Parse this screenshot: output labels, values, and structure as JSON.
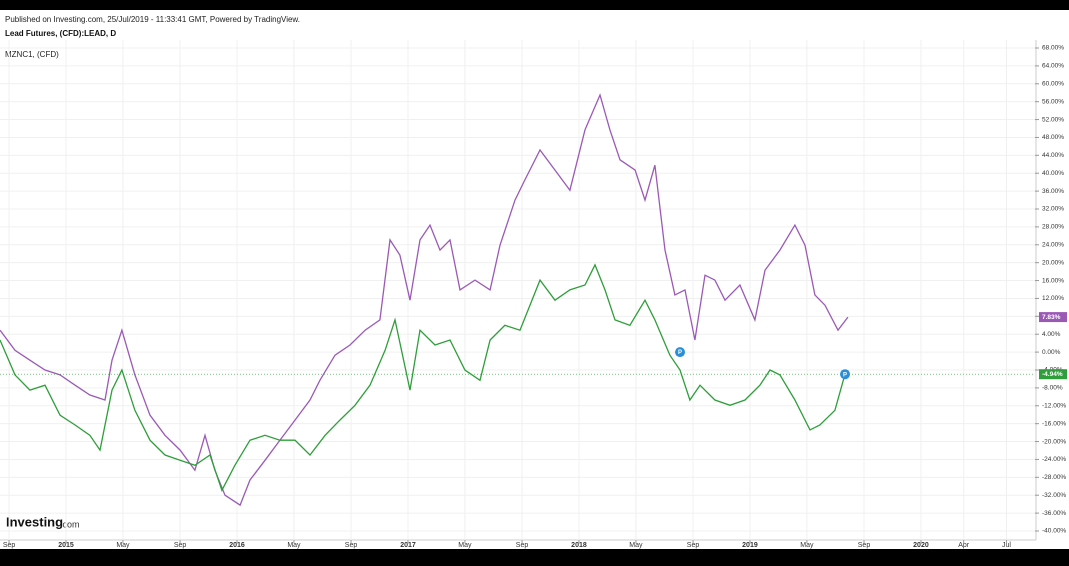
{
  "header": {
    "published": "Published on Investing.com, 25/Jul/2019 - 11:33:41 GMT, Powered by TradingView.",
    "instrument": "Lead Futures, (CFD):LEAD, D",
    "compare": "MZNC1,  (CFD)",
    "logo": "Investing",
    "logo_suffix": ".com"
  },
  "chart_data": {
    "type": "line",
    "xlim": [
      2014.614,
      2020.667
    ],
    "ylim": [
      -40,
      68
    ],
    "xticks": [
      {
        "value": 2014.667,
        "label": "Sep"
      },
      2015,
      {
        "value": 2015.333,
        "label": "May"
      },
      {
        "value": 2015.667,
        "label": "Sep"
      },
      2016,
      {
        "value": 2016.333,
        "label": "May"
      },
      {
        "value": 2016.667,
        "label": "Sep"
      },
      2017,
      {
        "value": 2017.333,
        "label": "May"
      },
      {
        "value": 2017.667,
        "label": "Sep"
      },
      2018,
      {
        "value": 2018.333,
        "label": "May"
      },
      {
        "value": 2018.667,
        "label": "Sep"
      },
      2019,
      {
        "value": 2019.333,
        "label": "May"
      },
      {
        "value": 2019.667,
        "label": "Sep"
      },
      2020,
      {
        "value": 2020.25,
        "label": "Apr"
      },
      {
        "value": 2020.5,
        "label": "Jul"
      }
    ],
    "yticks": [
      {
        "value": 68,
        "label": "68.00%"
      },
      {
        "value": 64,
        "label": "64.00%"
      },
      {
        "value": 60,
        "label": "60.00%"
      },
      {
        "value": 56,
        "label": "56.00%"
      },
      {
        "value": 52,
        "label": "52.00%"
      },
      {
        "value": 48,
        "label": "48.00%"
      },
      {
        "value": 44,
        "label": "44.00%"
      },
      {
        "value": 40,
        "label": "40.00%"
      },
      {
        "value": 36,
        "label": "36.00%"
      },
      {
        "value": 32,
        "label": "32.00%"
      },
      {
        "value": 28,
        "label": "28.00%"
      },
      {
        "value": 24,
        "label": "24.00%"
      },
      {
        "value": 20,
        "label": "20.00%"
      },
      {
        "value": 16,
        "label": "16.00%"
      },
      {
        "value": 12,
        "label": "12.00%"
      },
      {
        "value": 8,
        "label": "8.00%"
      },
      {
        "value": 4,
        "label": "4.00%"
      },
      {
        "value": 0,
        "label": "0.00%"
      },
      {
        "value": -4,
        "label": "-4.00%"
      },
      {
        "value": -8,
        "label": "-8.00%"
      },
      {
        "value": -12,
        "label": "-12.00%"
      },
      {
        "value": -16,
        "label": "-16.00%"
      },
      {
        "value": -20,
        "label": "-20.00%"
      },
      {
        "value": -24,
        "label": "-24.00%"
      },
      {
        "value": -28,
        "label": "-28.00%"
      },
      {
        "value": -32,
        "label": "-32.00%"
      },
      {
        "value": -36,
        "label": "-36.00%"
      },
      {
        "value": -40,
        "label": "-40.00%"
      }
    ],
    "grid": true,
    "series": [
      {
        "name": "MZNC1",
        "color": "#9b59b6",
        "last_value_label": "7.83%",
        "x": [
          2014.614,
          2014.702,
          2014.789,
          2014.877,
          2014.965,
          2015.053,
          2015.14,
          2015.228,
          2015.269,
          2015.327,
          2015.403,
          2015.491,
          2015.579,
          2015.667,
          2015.754,
          2015.813,
          2015.871,
          2015.93,
          2016.018,
          2016.076,
          2016.164,
          2016.251,
          2016.339,
          2016.427,
          2016.485,
          2016.573,
          2016.661,
          2016.749,
          2016.836,
          2016.895,
          2016.953,
          2017.012,
          2017.07,
          2017.129,
          2017.187,
          2017.246,
          2017.304,
          2017.392,
          2017.48,
          2017.538,
          2017.626,
          2017.684,
          2017.772,
          2017.86,
          2017.947,
          2018.035,
          2018.123,
          2018.181,
          2018.24,
          2018.328,
          2018.386,
          2018.444,
          2018.503,
          2018.561,
          2018.62,
          2018.678,
          2018.737,
          2018.795,
          2018.854,
          2018.941,
          2019.029,
          2019.088,
          2019.175,
          2019.263,
          2019.322,
          2019.38,
          2019.439,
          2019.515,
          2019.573
        ],
        "values": [
          4.9,
          0.4,
          -1.8,
          -4,
          -5.1,
          -7.4,
          -9.6,
          -10.7,
          -1.8,
          4.9,
          -5.1,
          -14.1,
          -18.6,
          -21.9,
          -26.4,
          -18.6,
          -26.4,
          -32,
          -34.2,
          -28.6,
          -24.2,
          -19.7,
          -15.2,
          -10.7,
          -6.3,
          -0.7,
          1.6,
          4.9,
          7.2,
          25.1,
          21.7,
          11.6,
          25.1,
          28.4,
          22.8,
          25.1,
          13.9,
          16.1,
          13.9,
          23.9,
          34,
          38.5,
          45.2,
          40.7,
          36.2,
          49.7,
          57.5,
          49.7,
          43,
          40.7,
          34,
          41.8,
          22.8,
          12.8,
          13.9,
          2.7,
          17.2,
          16.1,
          11.6,
          15,
          7.2,
          18.3,
          22.8,
          28.4,
          23.9,
          12.8,
          10.5,
          4.9,
          7.83
        ]
      },
      {
        "name": "Lead Futures",
        "color": "#2e9e3a",
        "last_value_label": "-4.94%",
        "x": [
          2014.614,
          2014.702,
          2014.789,
          2014.877,
          2014.965,
          2015.053,
          2015.14,
          2015.199,
          2015.269,
          2015.327,
          2015.403,
          2015.491,
          2015.579,
          2015.667,
          2015.754,
          2015.842,
          2015.912,
          2015.988,
          2016.076,
          2016.164,
          2016.251,
          2016.339,
          2016.427,
          2016.515,
          2016.602,
          2016.69,
          2016.778,
          2016.866,
          2016.924,
          2017.012,
          2017.07,
          2017.158,
          2017.246,
          2017.333,
          2017.421,
          2017.48,
          2017.567,
          2017.655,
          2017.772,
          2017.86,
          2017.947,
          2018.035,
          2018.094,
          2018.152,
          2018.211,
          2018.298,
          2018.386,
          2018.444,
          2018.532,
          2018.591,
          2018.649,
          2018.708,
          2018.795,
          2018.883,
          2018.971,
          2019.058,
          2019.117,
          2019.175,
          2019.263,
          2019.351,
          2019.409,
          2019.497,
          2019.556
        ],
        "values": [
          2.7,
          -5.1,
          -8.5,
          -7.4,
          -14.1,
          -16.3,
          -18.6,
          -21.9,
          -8.5,
          -4,
          -13,
          -19.7,
          -23,
          -24.2,
          -25.3,
          -23,
          -30.9,
          -25.3,
          -19.7,
          -18.6,
          -19.7,
          -19.7,
          -23,
          -18.6,
          -15.2,
          -11.9,
          -7.4,
          0.4,
          7.2,
          -8.5,
          4.9,
          1.6,
          2.7,
          -4,
          -6.3,
          2.7,
          6,
          4.9,
          16.1,
          11.6,
          13.9,
          15,
          19.5,
          13.9,
          7.2,
          6,
          11.6,
          7.2,
          -0.7,
          -4,
          -10.7,
          -7.4,
          -10.7,
          -11.9,
          -10.7,
          -7.4,
          -4,
          -5.1,
          -10.7,
          -17.4,
          -16.3,
          -13,
          -4.94
        ]
      }
    ],
    "annotations": [
      {
        "text": "P",
        "x": 2018.591,
        "y": 0
      },
      {
        "text": "P",
        "x": 2019.556,
        "y": -4.94
      }
    ]
  }
}
